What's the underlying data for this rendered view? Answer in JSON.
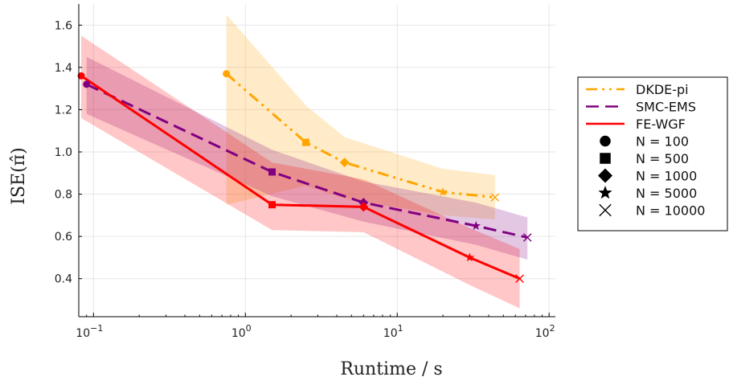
{
  "chart_data": {
    "type": "line",
    "xlabel": "Runtime / s",
    "ylabel": "ISE(π̂)",
    "xscale": "log",
    "xlim": [
      0.08,
      110
    ],
    "ylim": [
      0.22,
      1.7
    ],
    "xticks": [
      {
        "value": 0.1,
        "base": "10",
        "exp": "−1"
      },
      {
        "value": 1,
        "base": "10",
        "exp": "0"
      },
      {
        "value": 10,
        "base": "10",
        "exp": "1"
      },
      {
        "value": 100,
        "base": "10",
        "exp": "2"
      }
    ],
    "yticks": [
      {
        "value": 0.4,
        "label": "0.4"
      },
      {
        "value": 0.6,
        "label": "0.6"
      },
      {
        "value": 0.8,
        "label": "0.8"
      },
      {
        "value": 1.0,
        "label": "1.0"
      },
      {
        "value": 1.2,
        "label": "1.2"
      },
      {
        "value": 1.4,
        "label": "1.4"
      },
      {
        "value": 1.6,
        "label": "1.6"
      }
    ],
    "grid": true,
    "legend_position": "outside right",
    "series": [
      {
        "name": "DKDE-pi",
        "color": "#FFA500",
        "line_style": "dash-dot-dot",
        "x": [
          0.75,
          2.5,
          4.5,
          20,
          44
        ],
        "y": [
          1.37,
          1.045,
          0.95,
          0.81,
          0.785
        ],
        "lower": [
          0.75,
          0.84,
          0.78,
          0.7,
          0.68
        ],
        "upper": [
          1.65,
          1.22,
          1.07,
          0.92,
          0.89
        ]
      },
      {
        "name": "SMC-EMS",
        "color": "#800080",
        "line_style": "dashed",
        "x": [
          0.09,
          1.5,
          6,
          33,
          72
        ],
        "y": [
          1.32,
          0.905,
          0.76,
          0.65,
          0.595
        ],
        "lower": [
          1.18,
          0.79,
          0.67,
          0.56,
          0.49
        ],
        "upper": [
          1.45,
          1.01,
          0.86,
          0.76,
          0.69
        ]
      },
      {
        "name": "FE-WGF",
        "color": "#FF0000",
        "line_style": "solid",
        "x": [
          0.083,
          1.5,
          6,
          30,
          64
        ],
        "y": [
          1.36,
          0.75,
          0.74,
          0.5,
          0.4
        ],
        "lower": [
          1.16,
          0.63,
          0.62,
          0.37,
          0.26
        ],
        "upper": [
          1.55,
          0.95,
          0.87,
          0.64,
          0.54
        ]
      }
    ],
    "marker_legend": [
      {
        "label": "N = 100",
        "marker": "circle"
      },
      {
        "label": "N = 500",
        "marker": "square"
      },
      {
        "label": "N = 1000",
        "marker": "diamond"
      },
      {
        "label": "N = 5000",
        "marker": "star"
      },
      {
        "label": "N = 10000",
        "marker": "x"
      }
    ]
  }
}
